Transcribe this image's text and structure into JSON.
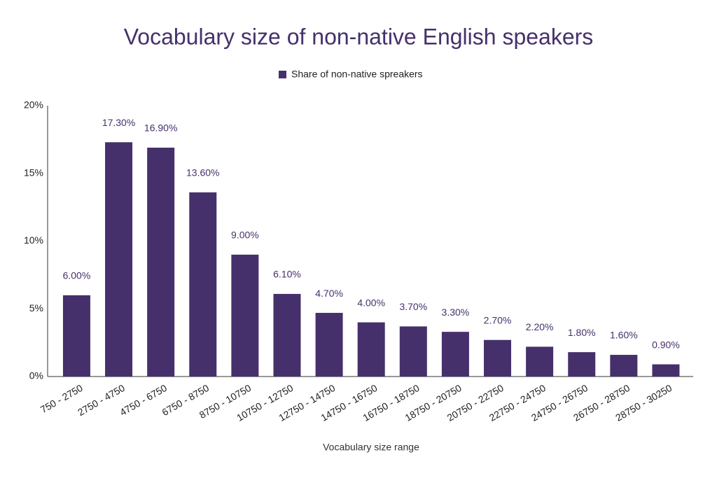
{
  "chart_data": {
    "type": "bar",
    "title": "Vocabulary size of non-native English speakers",
    "x_label": "Vocabulary size range",
    "categories": [
      "750 - 2750",
      "2750 - 4750",
      "4750 - 6750",
      "6750 - 8750",
      "8750 - 10750",
      "10750 - 12750",
      "12750 - 14750",
      "14750 - 16750",
      "16750 - 18750",
      "18750 - 20750",
      "20750 - 22750",
      "22750 - 24750",
      "24750 - 26750",
      "26750 - 28750",
      "28750 - 30250"
    ],
    "series": [
      {
        "name": "Share of non-native spreakers",
        "color": "#45306b",
        "values": [
          6.0,
          17.3,
          16.9,
          13.6,
          9.0,
          6.1,
          4.7,
          4.0,
          3.7,
          3.3,
          2.7,
          2.2,
          1.8,
          1.6,
          0.9
        ],
        "value_labels": [
          "6.00%",
          "17.30%",
          "16.90%",
          "13.60%",
          "9.00%",
          "6.10%",
          "4.70%",
          "4.00%",
          "3.70%",
          "3.30%",
          "2.70%",
          "2.20%",
          "1.80%",
          "1.60%",
          "0.90%"
        ]
      }
    ],
    "ylim": [
      0,
      20
    ],
    "yticks": [
      {
        "value": 0,
        "label": "0%"
      },
      {
        "value": 5,
        "label": "5%"
      },
      {
        "value": 10,
        "label": "10%"
      },
      {
        "value": 15,
        "label": "15%"
      },
      {
        "value": 20,
        "label": "20%"
      }
    ],
    "legend": "top"
  }
}
